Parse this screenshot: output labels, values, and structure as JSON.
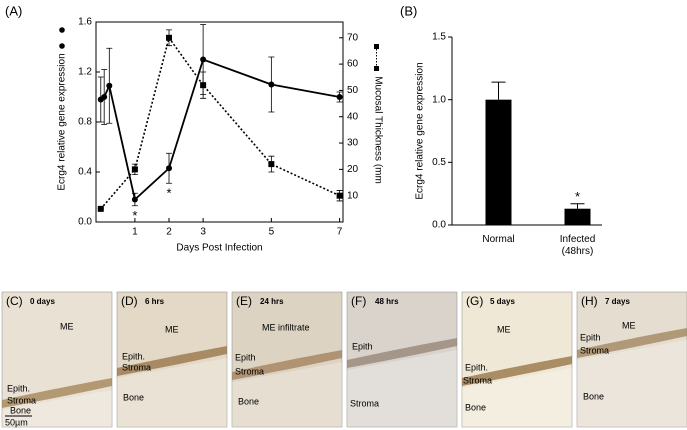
{
  "chart_data": [
    {
      "type": "line",
      "title": "(A)",
      "xlabel": "Days Post Infection",
      "ylabel": "Ecrg4 relative gene expression",
      "y2label": "Mucosal Thickness (mm",
      "xlim": [
        -0.14,
        7.1
      ],
      "xticks": [
        1,
        2,
        3,
        5,
        7
      ],
      "ylim": [
        0,
        1.6
      ],
      "yticks": [
        {
          "value": 0,
          "label": "0.0"
        },
        0.4,
        0.8,
        1.2,
        1.6
      ],
      "y2lim": [
        0,
        76
      ],
      "y2ticks": [
        10,
        20,
        30,
        40,
        50,
        60,
        70
      ],
      "series": [
        {
          "color": "#000000",
          "marker": "circle",
          "linestyle": "solid",
          "x": [
            0,
            0.1,
            0.25,
            1,
            2,
            3,
            5,
            7
          ],
          "values": [
            0.98,
            1.0,
            1.09,
            0.18,
            0.43,
            1.3,
            1.1,
            1.0
          ],
          "errors": [
            0.18,
            0.22,
            0.3,
            0.05,
            0.12,
            0.28,
            0.22,
            0.04
          ]
        },
        {
          "color": "#000000",
          "marker": "square",
          "linestyle": "dotted",
          "axis": "y2",
          "x": [
            0,
            1,
            2,
            3,
            5,
            7
          ],
          "values": [
            5,
            20,
            70,
            52,
            22,
            10
          ],
          "errors": [
            0,
            2,
            3,
            5,
            3,
            2
          ]
        }
      ],
      "annotations": [
        {
          "text": "*",
          "x": 1
        },
        {
          "text": "*",
          "x": 2
        }
      ]
    },
    {
      "type": "bar",
      "title": "(B)",
      "ylabel": "Ecrg4 relative gene expression",
      "categories": [
        "Normal",
        "Infected (48hrs)"
      ],
      "values": [
        1.0,
        0.13
      ],
      "errors": [
        0.14,
        0.04
      ],
      "color": "#000000",
      "ylim": [
        0,
        1.5
      ],
      "yticks": [
        {
          "value": 0,
          "label": "0.0"
        },
        0.5,
        {
          "value": 1,
          "label": "1.0"
        },
        1.5
      ],
      "annotations": [
        {
          "text": "*",
          "category": "Infected (48hrs)"
        }
      ]
    }
  ],
  "panels": [
    {
      "label": "(C)",
      "time": "0 days",
      "texts": [
        "ME",
        "Epith.",
        "Stroma",
        "Bone",
        "50µm"
      ]
    },
    {
      "label": "(D)",
      "time": "6 hrs",
      "texts": [
        "ME",
        "Epith.",
        "Stroma",
        "Bone"
      ]
    },
    {
      "label": "(E)",
      "time": "24 hrs",
      "texts": [
        "ME infiltrate",
        "Epith",
        "Stroma",
        "Bone"
      ]
    },
    {
      "label": "(F)",
      "time": "48 hrs",
      "texts": [
        "Epith",
        "Stroma"
      ]
    },
    {
      "label": "(G)",
      "time": "5 days",
      "texts": [
        "ME",
        "Epith.",
        "Stroma",
        "Bone"
      ]
    },
    {
      "label": "(H)",
      "time": "7 days",
      "texts": [
        "ME",
        "Epith",
        "Stroma",
        "Bone"
      ]
    }
  ]
}
